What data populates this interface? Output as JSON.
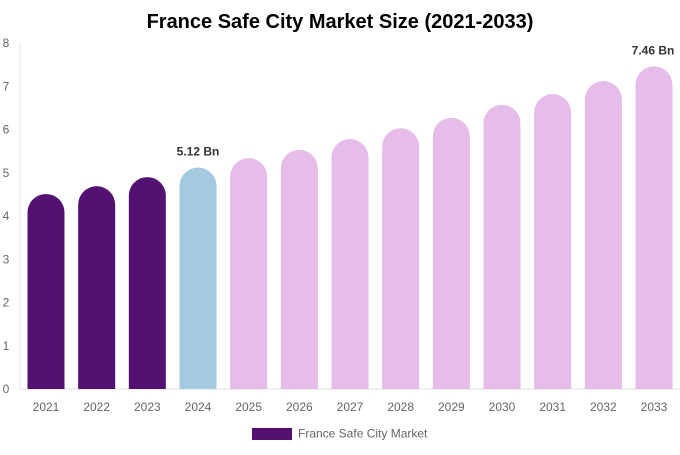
{
  "chart_data": {
    "type": "bar",
    "title": "France Safe City Market Size (2021-2033)",
    "xlabel": "",
    "ylabel": "",
    "ylim": [
      0,
      8
    ],
    "yticks": [
      "0",
      "1",
      "2",
      "3",
      "4",
      "5",
      "6",
      "7",
      "8"
    ],
    "grid": false,
    "legend_placement": "bottom",
    "categories": [
      "2021",
      "2022",
      "2023",
      "2024",
      "2025",
      "2026",
      "2027",
      "2028",
      "2029",
      "2030",
      "2031",
      "2032",
      "2033"
    ],
    "series": [
      {
        "name": "France Safe City Market",
        "values": [
          4.51,
          4.69,
          4.9,
          5.12,
          5.34,
          5.53,
          5.78,
          6.03,
          6.27,
          6.57,
          6.82,
          7.12,
          7.46
        ]
      }
    ],
    "bar_colors": [
      "#531172",
      "#531172",
      "#531172",
      "#a3cade",
      "#e6bde9",
      "#e6bde9",
      "#e6bde9",
      "#e6bde9",
      "#e6bde9",
      "#e6bde9",
      "#e6bde9",
      "#e6bde9",
      "#e6bde9"
    ],
    "data_labels": [
      {
        "category": "2024",
        "text": "5.12 Bn"
      },
      {
        "category": "2033",
        "text": "7.46 Bn"
      }
    ],
    "legend_color": "#531172"
  }
}
